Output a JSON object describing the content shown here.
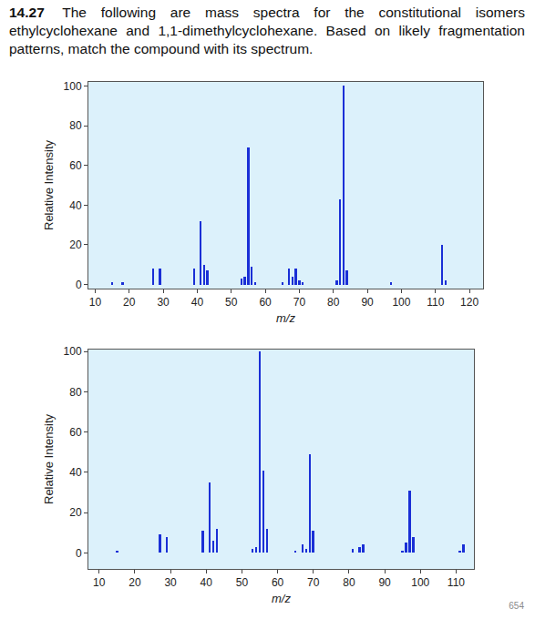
{
  "heading": {
    "number": "14.27",
    "text": "The following are mass spectra for the constitutional isomers ethylcyclohexane and 1,1-dimethylcyclohexane. Based on likely fragmentation patterns, match the compound with its spectrum."
  },
  "page": "654",
  "chart_data": [
    {
      "type": "bar",
      "x_label": "m/z",
      "y_label": "Relative Intensity",
      "color": "#1a2fd6",
      "x": [
        15,
        18,
        27,
        29,
        39,
        41,
        42,
        43,
        53,
        54,
        55,
        56,
        57,
        65,
        67,
        68,
        69,
        70,
        71,
        81,
        82,
        83,
        84,
        97,
        112,
        113
      ],
      "values": [
        1,
        1,
        8,
        8,
        8,
        32,
        10,
        7,
        3,
        4,
        69,
        9,
        1,
        1,
        8,
        4,
        8,
        2,
        1,
        2,
        43,
        100,
        7,
        1,
        20,
        2
      ],
      "xlim": [
        8,
        124
      ],
      "xticks": [
        10,
        20,
        30,
        40,
        50,
        60,
        70,
        80,
        90,
        100,
        110,
        120
      ],
      "ylim": [
        -2,
        102
      ],
      "yticks": [
        0,
        20,
        40,
        60,
        80,
        100
      ],
      "grid": false
    },
    {
      "type": "bar",
      "x_label": "m/z",
      "y_label": "Relative Intensity",
      "color": "#1a2fd6",
      "x": [
        15,
        27,
        29,
        39,
        41,
        42,
        43,
        53,
        54,
        55,
        56,
        57,
        65,
        67,
        68,
        69,
        70,
        81,
        83,
        84,
        95,
        96,
        97,
        98,
        111,
        112
      ],
      "values": [
        1,
        9,
        8,
        11,
        35,
        6,
        12,
        2,
        3,
        100,
        41,
        12,
        1,
        4,
        2,
        49,
        11,
        2,
        3,
        4,
        1,
        5,
        31,
        8,
        1,
        4
      ],
      "xlim": [
        7,
        115
      ],
      "xticks": [
        10,
        20,
        30,
        40,
        50,
        60,
        70,
        80,
        90,
        100,
        110
      ],
      "ylim": [
        -8,
        101
      ],
      "yticks": [
        0,
        20,
        40,
        60,
        80,
        100
      ],
      "grid": false
    }
  ]
}
